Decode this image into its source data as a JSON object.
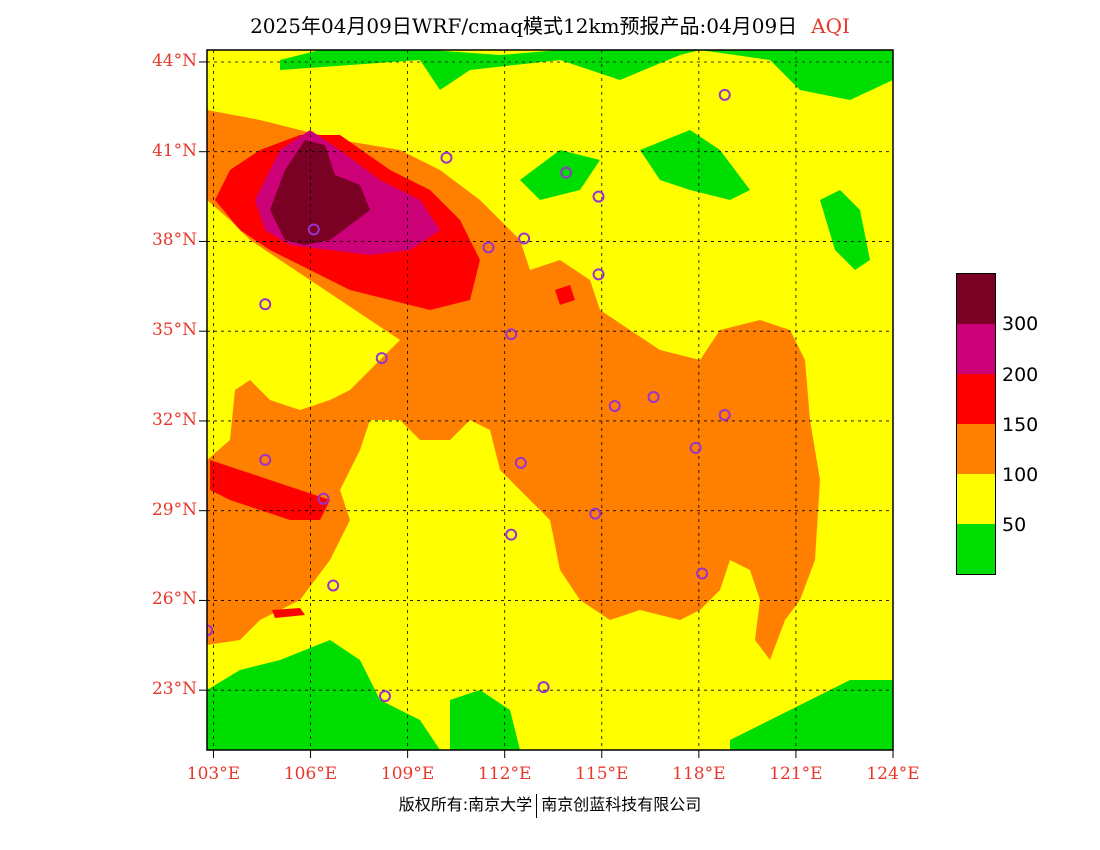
{
  "header": {
    "title": "2025年04月09日WRF/cmaq模式12km预报产品:04月09日",
    "variable": "AQI"
  },
  "map": {
    "lon_range": [
      102.8,
      124.0
    ],
    "lat_range": [
      21.0,
      44.4
    ],
    "lat_ticks": [
      "44°N",
      "41°N",
      "38°N",
      "35°N",
      "32°N",
      "29°N",
      "26°N",
      "23°N"
    ],
    "lat_values": [
      44,
      41,
      38,
      35,
      32,
      29,
      26,
      23
    ],
    "lon_ticks": [
      "103°E",
      "106°E",
      "109°E",
      "112°E",
      "115°E",
      "118°E",
      "121°E",
      "124°E"
    ],
    "lon_values": [
      103,
      106,
      109,
      112,
      115,
      118,
      121,
      124
    ],
    "grid": "dashed",
    "colors": {
      "background": "#ffff00",
      "good": "#00dd00",
      "moderate": "#ffff00",
      "light": "#ff8000",
      "medium": "#ff0000",
      "heavy": "#cc0077",
      "severe": "#7a0024",
      "station_marker": "#9933cc"
    }
  },
  "legend": {
    "title": "AQI",
    "placement": "right",
    "labels": [
      "300",
      "200",
      "150",
      "100",
      "50"
    ],
    "bands": [
      {
        "color": "#7a0024",
        "min": 300
      },
      {
        "color": "#cc0077",
        "min": 200
      },
      {
        "color": "#ff0000",
        "min": 150
      },
      {
        "color": "#ff8000",
        "min": 100
      },
      {
        "color": "#ffff00",
        "min": 50
      },
      {
        "color": "#00dd00",
        "min": 0
      }
    ]
  },
  "stations": [
    {
      "lon": 118.8,
      "lat": 42.9
    },
    {
      "lon": 110.2,
      "lat": 40.8
    },
    {
      "lon": 113.9,
      "lat": 40.3
    },
    {
      "lon": 114.9,
      "lat": 39.5
    },
    {
      "lon": 106.1,
      "lat": 38.4
    },
    {
      "lon": 111.5,
      "lat": 37.8
    },
    {
      "lon": 112.6,
      "lat": 38.1
    },
    {
      "lon": 114.9,
      "lat": 36.9
    },
    {
      "lon": 104.6,
      "lat": 35.9
    },
    {
      "lon": 112.2,
      "lat": 34.9
    },
    {
      "lon": 108.2,
      "lat": 34.1
    },
    {
      "lon": 115.4,
      "lat": 32.5
    },
    {
      "lon": 116.6,
      "lat": 32.8
    },
    {
      "lon": 118.8,
      "lat": 32.2
    },
    {
      "lon": 104.6,
      "lat": 30.7
    },
    {
      "lon": 112.5,
      "lat": 30.6
    },
    {
      "lon": 117.9,
      "lat": 31.1
    },
    {
      "lon": 106.4,
      "lat": 29.4
    },
    {
      "lon": 114.8,
      "lat": 28.9
    },
    {
      "lon": 112.2,
      "lat": 28.2
    },
    {
      "lon": 106.7,
      "lat": 26.5
    },
    {
      "lon": 118.1,
      "lat": 26.9
    },
    {
      "lon": 102.8,
      "lat": 25.0
    },
    {
      "lon": 108.3,
      "lat": 22.8
    },
    {
      "lon": 113.2,
      "lat": 23.1
    }
  ],
  "footer": {
    "left": "版权所有:南京大学",
    "right": "南京创蓝科技有限公司"
  }
}
